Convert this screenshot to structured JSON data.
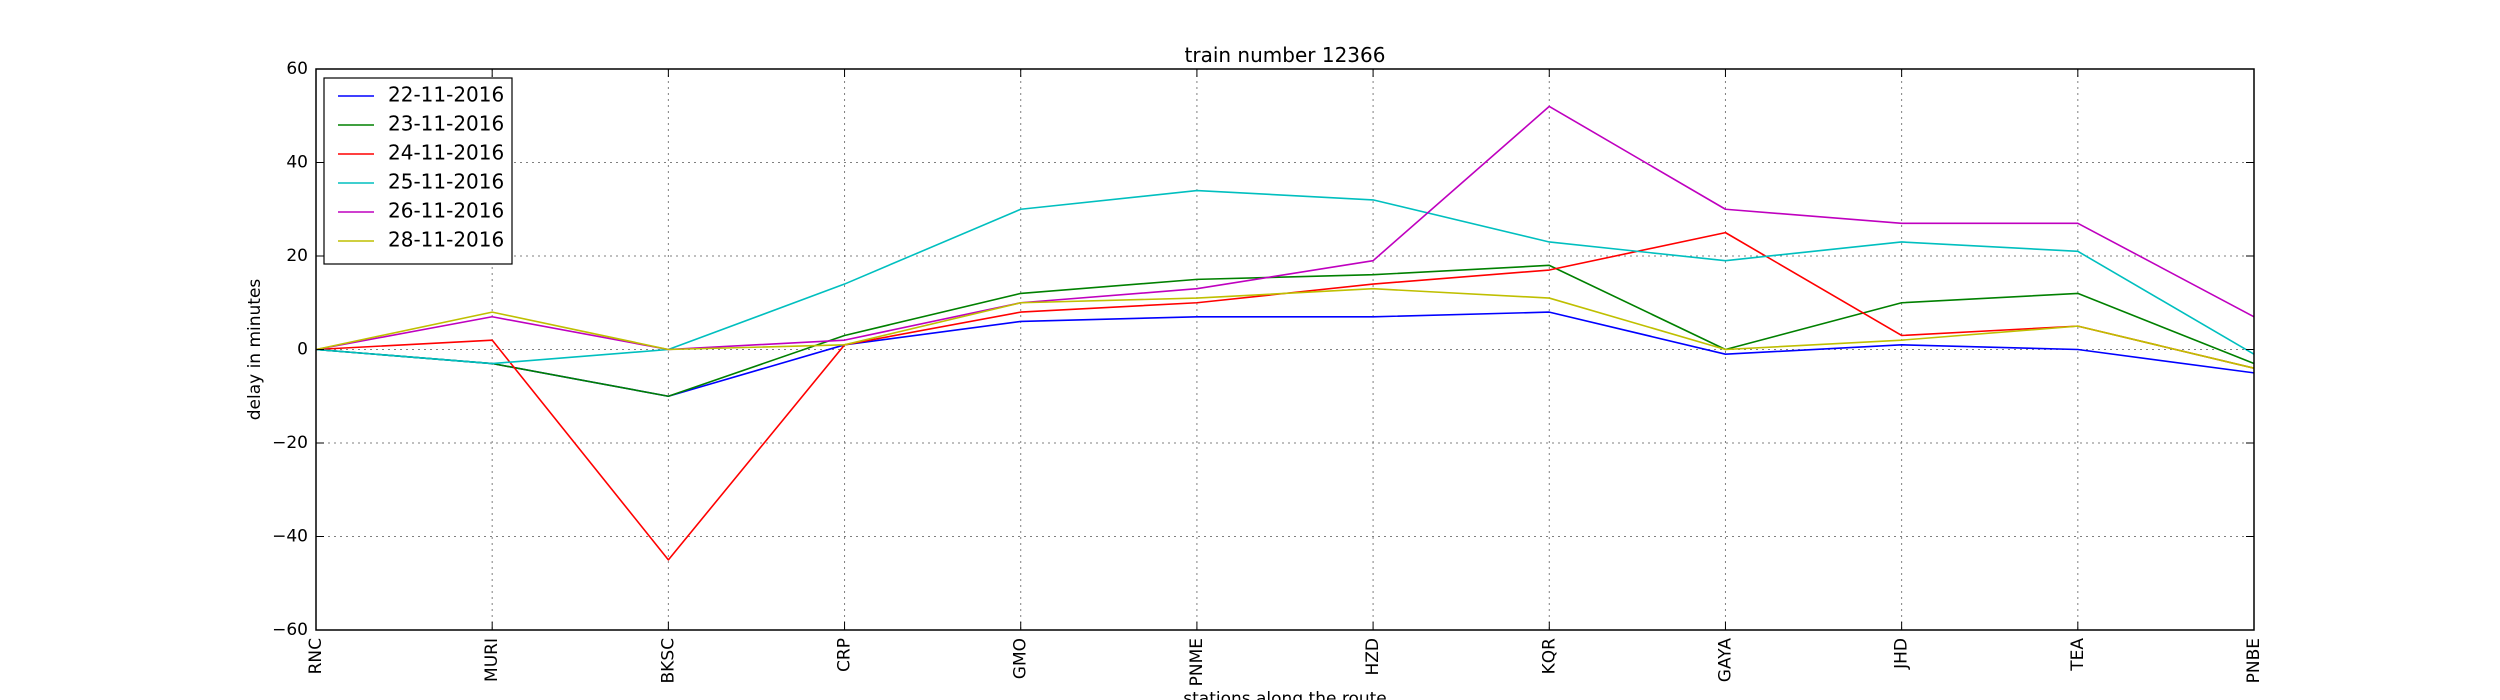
{
  "chart_data": {
    "type": "line",
    "title": "train number 12366",
    "xlabel": "stations along the route",
    "ylabel": "delay in minutes",
    "categories": [
      "RNC",
      "MURI",
      "BKSC",
      "CRP",
      "GMO",
      "PNME",
      "HZD",
      "KQR",
      "GAYA",
      "JHD",
      "TEA",
      "PNBE"
    ],
    "ylim": [
      -60,
      60
    ],
    "yticks": [
      -60,
      -40,
      -20,
      0,
      20,
      40,
      60
    ],
    "grid": true,
    "legend_position": "top-left",
    "series": [
      {
        "name": "22-11-2016",
        "color": "#0000ff",
        "values": [
          0,
          -3,
          -10,
          1,
          6,
          7,
          7,
          8,
          -1,
          1,
          0,
          -5
        ]
      },
      {
        "name": "23-11-2016",
        "color": "#008000",
        "values": [
          0,
          -3,
          -10,
          3,
          12,
          15,
          16,
          18,
          0,
          10,
          12,
          -3
        ]
      },
      {
        "name": "24-11-2016",
        "color": "#ff0000",
        "values": [
          0,
          2,
          -45,
          1,
          8,
          10,
          14,
          17,
          25,
          3,
          5,
          -4
        ]
      },
      {
        "name": "25-11-2016",
        "color": "#00bfbf",
        "values": [
          0,
          -3,
          0,
          14,
          30,
          34,
          32,
          23,
          19,
          23,
          21,
          -1
        ]
      },
      {
        "name": "26-11-2016",
        "color": "#bf00bf",
        "values": [
          0,
          7,
          0,
          2,
          10,
          13,
          19,
          52,
          30,
          27,
          27,
          7
        ]
      },
      {
        "name": "28-11-2016",
        "color": "#bfbf00",
        "values": [
          0,
          8,
          0,
          1,
          10,
          11,
          13,
          11,
          0,
          2,
          5,
          -4
        ]
      }
    ]
  }
}
